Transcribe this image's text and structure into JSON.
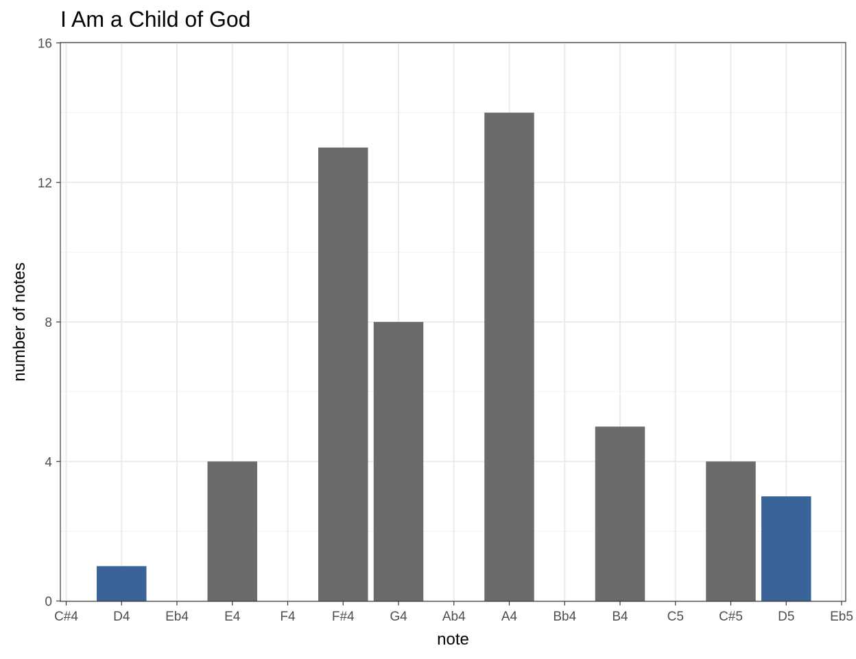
{
  "chart_data": {
    "type": "bar",
    "title": "I Am a Child of God",
    "xlabel": "note",
    "ylabel": "number of notes",
    "categories": [
      "C#4",
      "D4",
      "Eb4",
      "E4",
      "F4",
      "F#4",
      "G4",
      "Ab4",
      "A4",
      "Bb4",
      "B4",
      "C5",
      "C#5",
      "D5",
      "Eb5"
    ],
    "values": [
      0,
      1,
      0,
      4,
      0,
      13,
      8,
      0,
      14,
      0,
      5,
      0,
      4,
      3,
      0
    ],
    "bar_colors": [
      "#6b6b6b",
      "#3a6399",
      "#6b6b6b",
      "#6b6b6b",
      "#6b6b6b",
      "#6b6b6b",
      "#6b6b6b",
      "#6b6b6b",
      "#6b6b6b",
      "#6b6b6b",
      "#6b6b6b",
      "#6b6b6b",
      "#6b6b6b",
      "#3a6399",
      "#6b6b6b"
    ],
    "ylim": [
      0,
      16
    ],
    "yticks": [
      0,
      4,
      8,
      12,
      16
    ],
    "grid": true,
    "legend": "none"
  }
}
